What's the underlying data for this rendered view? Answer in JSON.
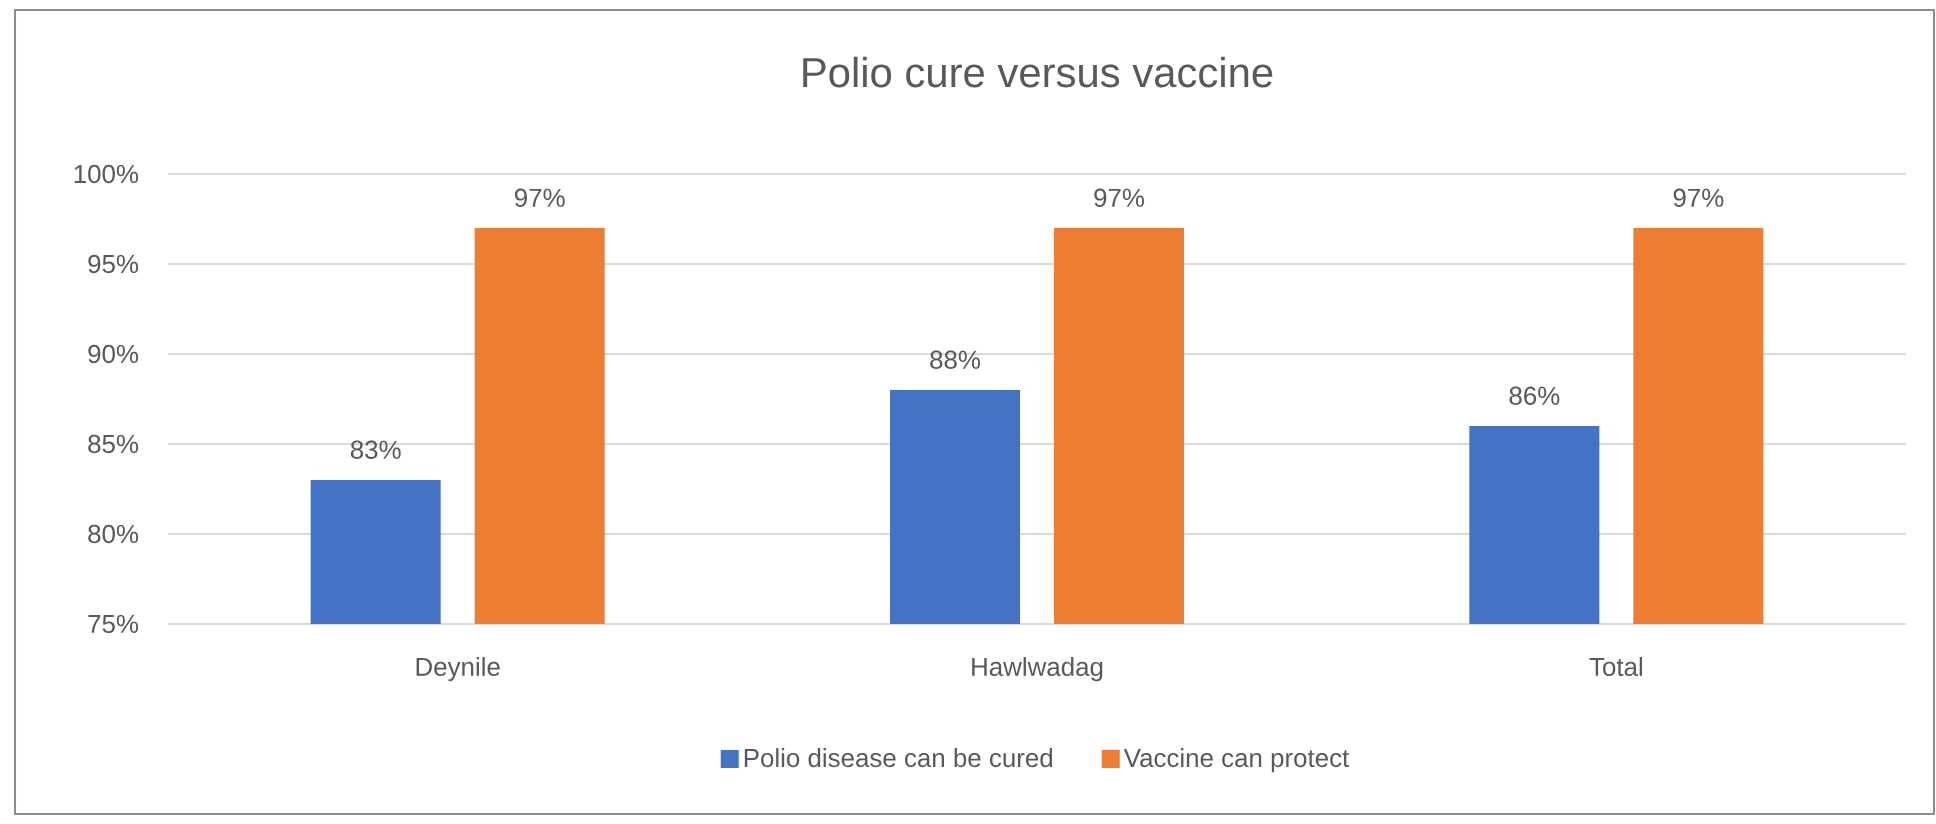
{
  "chart_data": {
    "type": "bar",
    "title": "Polio cure versus vaccine",
    "categories": [
      "Deynile",
      "Hawlwadag",
      "Total"
    ],
    "series": [
      {
        "name": "Polio disease can be cured",
        "color": "#4472c4",
        "values": [
          83,
          88,
          86
        ],
        "value_labels": [
          "83%",
          "88%",
          "86%"
        ]
      },
      {
        "name": "Vaccine can protect",
        "color": "#ed7d31",
        "values": [
          97,
          97,
          97
        ],
        "value_labels": [
          "97%",
          "97%",
          "97%"
        ]
      }
    ],
    "ylim": [
      75,
      100
    ],
    "yticks": [
      {
        "value": 75,
        "label": "75%"
      },
      {
        "value": 80,
        "label": "80%"
      },
      {
        "value": 85,
        "label": "85%"
      },
      {
        "value": 90,
        "label": "90%"
      },
      {
        "value": 95,
        "label": "95%"
      },
      {
        "value": 100,
        "label": "100%"
      }
    ],
    "grid": "y",
    "legend": "bottom"
  }
}
